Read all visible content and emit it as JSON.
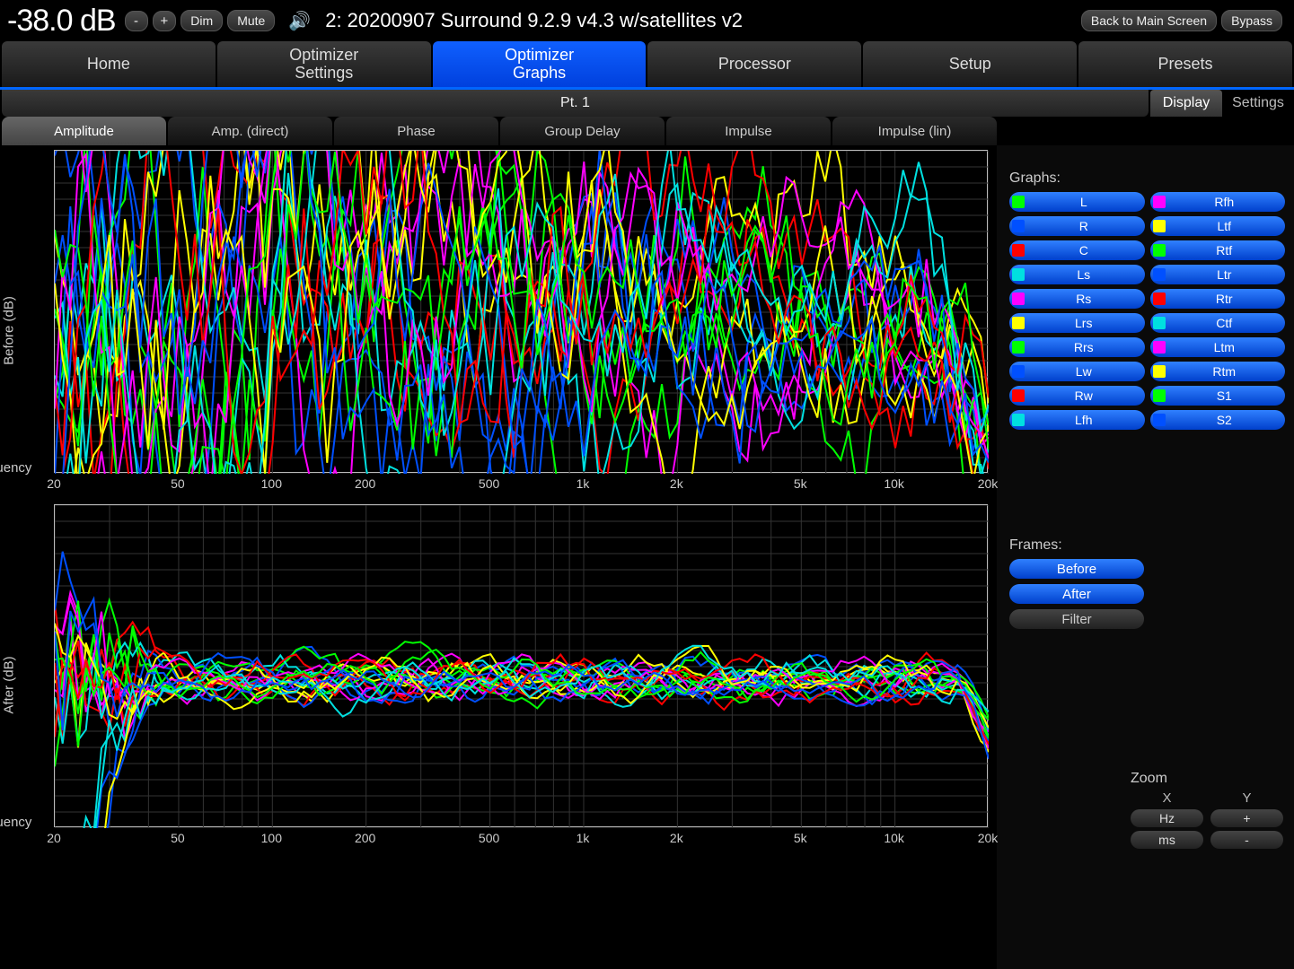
{
  "top": {
    "db": "-38.0 dB",
    "minus": "-",
    "plus": "+",
    "dim": "Dim",
    "mute": "Mute",
    "preset": "2: 20200907 Surround 9.2.9 v4.3 w/satellites v2",
    "back": "Back to Main Screen",
    "bypass": "Bypass"
  },
  "nav": {
    "items": [
      "Home",
      "Optimizer\nSettings",
      "Optimizer\nGraphs",
      "Processor",
      "Setup",
      "Presets"
    ],
    "active": 2
  },
  "sub": {
    "pt": "Pt. 1",
    "display": "Display",
    "settings": "Settings"
  },
  "tabs": {
    "items": [
      "Amplitude",
      "Amp. (direct)",
      "Phase",
      "Group Delay",
      "Impulse",
      "Impulse (lin)"
    ],
    "active": 0
  },
  "chart": {
    "yaxis_labels": {
      "before": "Before (dB)",
      "after": "After (dB)"
    },
    "xaxis_label": "Frequency (Hz)",
    "ylim": [
      -10,
      10
    ],
    "yticks": [
      -10,
      -5,
      0,
      5,
      10
    ],
    "xlim": [
      20,
      20000
    ],
    "xticks": [
      {
        "v": 20,
        "l": "20"
      },
      {
        "v": 50,
        "l": "50"
      },
      {
        "v": 100,
        "l": "100"
      },
      {
        "v": 200,
        "l": "200"
      },
      {
        "v": 500,
        "l": "500"
      },
      {
        "v": 1000,
        "l": "1k"
      },
      {
        "v": 2000,
        "l": "2k"
      },
      {
        "v": 5000,
        "l": "5k"
      },
      {
        "v": 10000,
        "l": "10k"
      },
      {
        "v": 20000,
        "l": "20k"
      }
    ],
    "xgrid": [
      20,
      30,
      40,
      50,
      60,
      70,
      80,
      90,
      100,
      200,
      300,
      400,
      500,
      600,
      700,
      800,
      900,
      1000,
      2000,
      3000,
      4000,
      5000,
      6000,
      7000,
      8000,
      9000,
      10000,
      20000
    ],
    "plot_bg": "#000000",
    "grid_color": "#333333",
    "border_color": "#bbbbbb"
  },
  "channels": [
    {
      "label": "L",
      "color": "#00ff00"
    },
    {
      "label": "Rfh",
      "color": "#ff00ff"
    },
    {
      "label": "R",
      "color": "#0050ff"
    },
    {
      "label": "Ltf",
      "color": "#ffff00"
    },
    {
      "label": "C",
      "color": "#ff0000"
    },
    {
      "label": "Rtf",
      "color": "#00ff00"
    },
    {
      "label": "Ls",
      "color": "#00e0e0"
    },
    {
      "label": "Ltr",
      "color": "#0050ff"
    },
    {
      "label": "Rs",
      "color": "#ff00ff"
    },
    {
      "label": "Rtr",
      "color": "#ff0000"
    },
    {
      "label": "Lrs",
      "color": "#ffff00"
    },
    {
      "label": "Ctf",
      "color": "#00e0e0"
    },
    {
      "label": "Rrs",
      "color": "#00ff00"
    },
    {
      "label": "Ltm",
      "color": "#ff00ff"
    },
    {
      "label": "Lw",
      "color": "#0050ff"
    },
    {
      "label": "Rtm",
      "color": "#ffff00"
    },
    {
      "label": "Rw",
      "color": "#ff0000"
    },
    {
      "label": "S1",
      "color": "#00ff00"
    },
    {
      "label": "Lfh",
      "color": "#00e0e0"
    },
    {
      "label": "S2",
      "color": "#0050ff"
    }
  ],
  "side": {
    "graphs_title": "Graphs:",
    "frames_title": "Frames:",
    "frames": [
      {
        "label": "Before",
        "on": true
      },
      {
        "label": "After",
        "on": true
      },
      {
        "label": "Filter",
        "on": false
      }
    ],
    "zoom_title": "Zoom",
    "zoom_x": "X",
    "zoom_y": "Y",
    "zoom_hz": "Hz",
    "zoom_ms": "ms",
    "zoom_plus": "+",
    "zoom_minus": "-"
  }
}
